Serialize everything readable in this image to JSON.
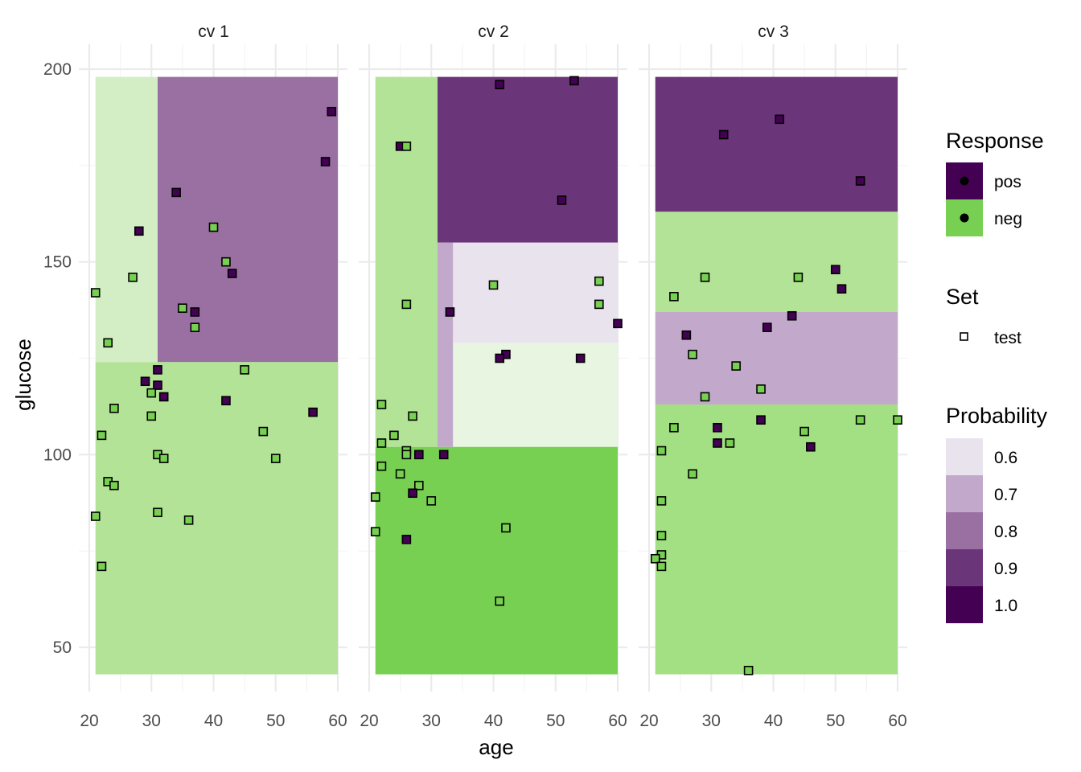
{
  "chart_data": {
    "type": "faceted-scatter-with-regions",
    "xlabel": "age",
    "ylabel": "glucose",
    "xlim": [
      20,
      60
    ],
    "ylim": [
      43,
      198
    ],
    "x_ticks": [
      20,
      30,
      40,
      50,
      60
    ],
    "y_ticks": [
      50,
      100,
      150,
      200
    ],
    "colors": {
      "pos": "#440154",
      "neg": "#78d052",
      "grid_major": "#ebebeb",
      "grid_minor": "#f4f4f4",
      "prob_0_6": "#e9e3ee",
      "prob_0_7": "#c2a8cb",
      "prob_0_8": "#9a70a3",
      "prob_0_9": "#6b3579",
      "prob_1_0": "#440154",
      "neg_0_6": "#e8f5e1",
      "neg_0_7": "#d3eec4",
      "neg_0_8": "#b3e396",
      "neg_0_9": "#a3df83",
      "neg_1_0": "#78d052"
    },
    "facets": [
      {
        "label": "cv 1",
        "regions": [
          {
            "x": [
              21,
              31
            ],
            "y": [
              124,
              198
            ],
            "cls": "neg",
            "prob": 0.7
          },
          {
            "x": [
              31,
              60
            ],
            "y": [
              124,
              198
            ],
            "cls": "pos",
            "prob": 0.8
          },
          {
            "x": [
              21,
              60
            ],
            "y": [
              43,
              124
            ],
            "cls": "neg",
            "prob": 0.8
          }
        ],
        "points": [
          {
            "x": 59,
            "y": 189,
            "cls": "pos"
          },
          {
            "x": 58,
            "y": 176,
            "cls": "pos"
          },
          {
            "x": 34,
            "y": 168,
            "cls": "pos"
          },
          {
            "x": 28,
            "y": 158,
            "cls": "pos"
          },
          {
            "x": 40,
            "y": 159,
            "cls": "neg"
          },
          {
            "x": 42,
            "y": 150,
            "cls": "neg"
          },
          {
            "x": 43,
            "y": 147,
            "cls": "pos"
          },
          {
            "x": 27,
            "y": 146,
            "cls": "neg"
          },
          {
            "x": 21,
            "y": 142,
            "cls": "neg"
          },
          {
            "x": 35,
            "y": 138,
            "cls": "neg"
          },
          {
            "x": 37,
            "y": 137,
            "cls": "pos"
          },
          {
            "x": 37,
            "y": 133,
            "cls": "neg"
          },
          {
            "x": 23,
            "y": 129,
            "cls": "neg"
          },
          {
            "x": 31,
            "y": 122,
            "cls": "pos"
          },
          {
            "x": 45,
            "y": 122,
            "cls": "neg"
          },
          {
            "x": 29,
            "y": 119,
            "cls": "pos"
          },
          {
            "x": 31,
            "y": 118,
            "cls": "pos"
          },
          {
            "x": 30,
            "y": 116,
            "cls": "neg"
          },
          {
            "x": 32,
            "y": 115,
            "cls": "pos"
          },
          {
            "x": 42,
            "y": 114,
            "cls": "pos"
          },
          {
            "x": 24,
            "y": 112,
            "cls": "neg"
          },
          {
            "x": 56,
            "y": 111,
            "cls": "pos"
          },
          {
            "x": 30,
            "y": 110,
            "cls": "neg"
          },
          {
            "x": 48,
            "y": 106,
            "cls": "neg"
          },
          {
            "x": 22,
            "y": 105,
            "cls": "neg"
          },
          {
            "x": 31,
            "y": 100,
            "cls": "neg"
          },
          {
            "x": 32,
            "y": 99,
            "cls": "neg"
          },
          {
            "x": 50,
            "y": 99,
            "cls": "neg"
          },
          {
            "x": 23,
            "y": 93,
            "cls": "neg"
          },
          {
            "x": 24,
            "y": 92,
            "cls": "neg"
          },
          {
            "x": 31,
            "y": 85,
            "cls": "neg"
          },
          {
            "x": 21,
            "y": 84,
            "cls": "neg"
          },
          {
            "x": 36,
            "y": 83,
            "cls": "neg"
          },
          {
            "x": 22,
            "y": 71,
            "cls": "neg"
          }
        ]
      },
      {
        "label": "cv 2",
        "regions": [
          {
            "x": [
              21,
              31
            ],
            "y": [
              102,
              198
            ],
            "cls": "neg",
            "prob": 0.8
          },
          {
            "x": [
              31,
              60
            ],
            "y": [
              155,
              198
            ],
            "cls": "pos",
            "prob": 0.9
          },
          {
            "x": [
              31,
              33.5
            ],
            "y": [
              102,
              155
            ],
            "cls": "pos",
            "prob": 0.7
          },
          {
            "x": [
              33.5,
              60
            ],
            "y": [
              129,
              155
            ],
            "cls": "pos",
            "prob": 0.6
          },
          {
            "x": [
              33.5,
              60
            ],
            "y": [
              102,
              129
            ],
            "cls": "neg",
            "prob": 0.6
          },
          {
            "x": [
              21,
              60
            ],
            "y": [
              43,
              102
            ],
            "cls": "neg",
            "prob": 1.0
          }
        ],
        "points": [
          {
            "x": 53,
            "y": 197,
            "cls": "pos"
          },
          {
            "x": 41,
            "y": 196,
            "cls": "pos"
          },
          {
            "x": 25,
            "y": 180,
            "cls": "pos"
          },
          {
            "x": 26,
            "y": 180,
            "cls": "neg"
          },
          {
            "x": 51,
            "y": 166,
            "cls": "pos"
          },
          {
            "x": 57,
            "y": 145,
            "cls": "neg"
          },
          {
            "x": 40,
            "y": 144,
            "cls": "neg"
          },
          {
            "x": 26,
            "y": 139,
            "cls": "neg"
          },
          {
            "x": 57,
            "y": 139,
            "cls": "neg"
          },
          {
            "x": 33,
            "y": 137,
            "cls": "pos"
          },
          {
            "x": 60,
            "y": 134,
            "cls": "pos"
          },
          {
            "x": 42,
            "y": 126,
            "cls": "pos"
          },
          {
            "x": 41,
            "y": 125,
            "cls": "pos"
          },
          {
            "x": 54,
            "y": 125,
            "cls": "pos"
          },
          {
            "x": 22,
            "y": 113,
            "cls": "neg"
          },
          {
            "x": 27,
            "y": 110,
            "cls": "neg"
          },
          {
            "x": 24,
            "y": 105,
            "cls": "neg"
          },
          {
            "x": 22,
            "y": 103,
            "cls": "neg"
          },
          {
            "x": 26,
            "y": 101,
            "cls": "neg"
          },
          {
            "x": 26,
            "y": 100,
            "cls": "neg"
          },
          {
            "x": 28,
            "y": 100,
            "cls": "pos"
          },
          {
            "x": 32,
            "y": 100,
            "cls": "pos"
          },
          {
            "x": 22,
            "y": 97,
            "cls": "neg"
          },
          {
            "x": 25,
            "y": 95,
            "cls": "neg"
          },
          {
            "x": 28,
            "y": 92,
            "cls": "neg"
          },
          {
            "x": 27,
            "y": 90,
            "cls": "pos"
          },
          {
            "x": 21,
            "y": 89,
            "cls": "neg"
          },
          {
            "x": 30,
            "y": 88,
            "cls": "neg"
          },
          {
            "x": 42,
            "y": 81,
            "cls": "neg"
          },
          {
            "x": 21,
            "y": 80,
            "cls": "neg"
          },
          {
            "x": 26,
            "y": 78,
            "cls": "pos"
          },
          {
            "x": 41,
            "y": 62,
            "cls": "neg"
          }
        ]
      },
      {
        "label": "cv 3",
        "regions": [
          {
            "x": [
              21,
              60
            ],
            "y": [
              163,
              198
            ],
            "cls": "pos",
            "prob": 0.9
          },
          {
            "x": [
              21,
              60
            ],
            "y": [
              137,
              163
            ],
            "cls": "neg",
            "prob": 0.8
          },
          {
            "x": [
              21,
              60
            ],
            "y": [
              113,
              137
            ],
            "cls": "pos",
            "prob": 0.7
          },
          {
            "x": [
              21,
              60
            ],
            "y": [
              43,
              113
            ],
            "cls": "neg",
            "prob": 0.9
          }
        ],
        "points": [
          {
            "x": 41,
            "y": 187,
            "cls": "pos"
          },
          {
            "x": 32,
            "y": 183,
            "cls": "pos"
          },
          {
            "x": 54,
            "y": 171,
            "cls": "pos"
          },
          {
            "x": 50,
            "y": 148,
            "cls": "pos"
          },
          {
            "x": 29,
            "y": 146,
            "cls": "neg"
          },
          {
            "x": 44,
            "y": 146,
            "cls": "neg"
          },
          {
            "x": 51,
            "y": 143,
            "cls": "pos"
          },
          {
            "x": 24,
            "y": 141,
            "cls": "neg"
          },
          {
            "x": 43,
            "y": 136,
            "cls": "pos"
          },
          {
            "x": 39,
            "y": 133,
            "cls": "pos"
          },
          {
            "x": 26,
            "y": 131,
            "cls": "pos"
          },
          {
            "x": 27,
            "y": 126,
            "cls": "neg"
          },
          {
            "x": 34,
            "y": 123,
            "cls": "neg"
          },
          {
            "x": 38,
            "y": 117,
            "cls": "neg"
          },
          {
            "x": 29,
            "y": 115,
            "cls": "neg"
          },
          {
            "x": 38,
            "y": 109,
            "cls": "pos"
          },
          {
            "x": 54,
            "y": 109,
            "cls": "neg"
          },
          {
            "x": 60,
            "y": 109,
            "cls": "neg"
          },
          {
            "x": 24,
            "y": 107,
            "cls": "neg"
          },
          {
            "x": 31,
            "y": 107,
            "cls": "pos"
          },
          {
            "x": 45,
            "y": 106,
            "cls": "neg"
          },
          {
            "x": 31,
            "y": 103,
            "cls": "pos"
          },
          {
            "x": 33,
            "y": 103,
            "cls": "neg"
          },
          {
            "x": 46,
            "y": 102,
            "cls": "pos"
          },
          {
            "x": 22,
            "y": 101,
            "cls": "neg"
          },
          {
            "x": 27,
            "y": 95,
            "cls": "neg"
          },
          {
            "x": 22,
            "y": 88,
            "cls": "neg"
          },
          {
            "x": 22,
            "y": 79,
            "cls": "neg"
          },
          {
            "x": 22,
            "y": 74,
            "cls": "neg"
          },
          {
            "x": 21,
            "y": 73,
            "cls": "neg"
          },
          {
            "x": 22,
            "y": 71,
            "cls": "neg"
          },
          {
            "x": 36,
            "y": 44,
            "cls": "neg"
          }
        ]
      }
    ],
    "legend": {
      "response": {
        "title": "Response",
        "items": [
          {
            "label": "pos",
            "cls": "pos"
          },
          {
            "label": "neg",
            "cls": "neg"
          }
        ]
      },
      "set": {
        "title": "Set",
        "items": [
          {
            "label": "test"
          }
        ]
      },
      "probability": {
        "title": "Probability",
        "items": [
          "0.6",
          "0.7",
          "0.8",
          "0.9",
          "1.0"
        ]
      }
    }
  }
}
